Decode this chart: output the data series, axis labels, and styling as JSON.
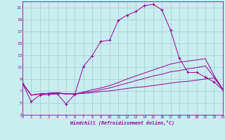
{
  "xlabel": "Windchill (Refroidissement éolien,°C)",
  "xlim": [
    0,
    23
  ],
  "ylim": [
    3,
    22
  ],
  "xticks": [
    0,
    1,
    2,
    3,
    4,
    5,
    6,
    7,
    8,
    9,
    10,
    11,
    12,
    13,
    14,
    15,
    16,
    17,
    18,
    19,
    20,
    21,
    22,
    23
  ],
  "yticks": [
    3,
    5,
    7,
    9,
    11,
    13,
    15,
    17,
    19,
    21
  ],
  "bg_color": "#c8eef0",
  "line_color": "#990099",
  "grid_color": "#a0ccd4",
  "series": [
    {
      "x": [
        0,
        1,
        2,
        3,
        4,
        5,
        6,
        7,
        8,
        9,
        10,
        11,
        12,
        13,
        14,
        15,
        16,
        17,
        18,
        19,
        20,
        21,
        22,
        23
      ],
      "y": [
        8.3,
        5.2,
        6.3,
        6.4,
        6.5,
        4.8,
        6.4,
        11.1,
        12.9,
        15.3,
        15.5,
        18.8,
        19.7,
        20.3,
        21.3,
        21.5,
        20.6,
        17.2,
        12.5,
        10.1,
        10.1,
        9.3,
        8.5,
        7.2
      ],
      "marker": "+"
    },
    {
      "x": [
        0,
        1,
        2,
        3,
        4,
        5,
        6,
        7,
        8,
        9,
        10,
        11,
        12,
        13,
        14,
        15,
        16,
        17,
        18,
        19,
        20,
        21,
        22,
        23
      ],
      "y": [
        8.3,
        6.3,
        6.5,
        6.6,
        6.6,
        6.5,
        6.5,
        6.6,
        6.7,
        6.9,
        7.0,
        7.2,
        7.4,
        7.6,
        7.7,
        7.9,
        8.1,
        8.3,
        8.5,
        8.6,
        8.8,
        9.0,
        9.2,
        7.3
      ],
      "marker": null
    },
    {
      "x": [
        0,
        1,
        2,
        3,
        4,
        5,
        6,
        7,
        8,
        9,
        10,
        11,
        12,
        13,
        14,
        15,
        16,
        17,
        18,
        19,
        20,
        21,
        22,
        23
      ],
      "y": [
        8.3,
        6.3,
        6.5,
        6.6,
        6.7,
        6.5,
        6.5,
        6.7,
        6.9,
        7.2,
        7.5,
        7.9,
        8.3,
        8.7,
        9.1,
        9.5,
        9.8,
        10.2,
        10.4,
        10.7,
        10.9,
        11.2,
        9.3,
        7.3
      ],
      "marker": null
    },
    {
      "x": [
        0,
        1,
        2,
        3,
        4,
        5,
        6,
        7,
        8,
        9,
        10,
        11,
        12,
        13,
        14,
        15,
        16,
        17,
        18,
        19,
        20,
        21,
        22,
        23
      ],
      "y": [
        8.3,
        6.3,
        6.5,
        6.6,
        6.7,
        6.5,
        6.5,
        6.8,
        7.2,
        7.5,
        7.9,
        8.4,
        9.0,
        9.5,
        10.0,
        10.5,
        11.0,
        11.5,
        11.8,
        12.0,
        12.2,
        12.4,
        9.6,
        7.3
      ],
      "marker": null
    }
  ]
}
